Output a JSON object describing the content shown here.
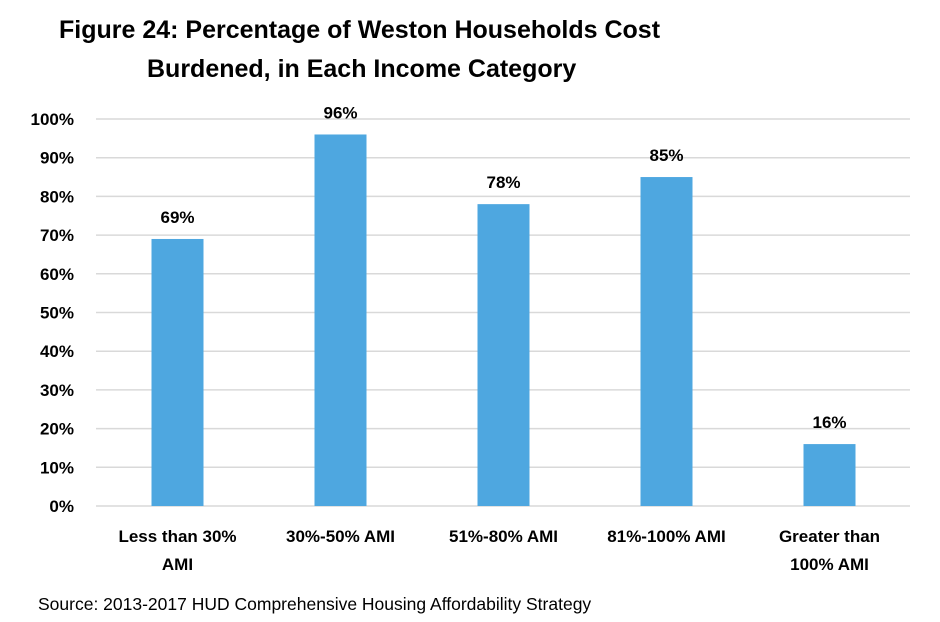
{
  "chart_data": {
    "type": "bar",
    "title_lines": [
      "Figure 24:  Percentage of Weston Households Cost",
      "Burdened, in Each Income Category"
    ],
    "categories": [
      [
        "Less than 30%",
        "AMI"
      ],
      [
        "30%-50% AMI"
      ],
      [
        "51%-80% AMI"
      ],
      [
        "81%-100% AMI"
      ],
      [
        "Greater than",
        "100% AMI"
      ]
    ],
    "values": [
      69,
      96,
      78,
      85,
      16
    ],
    "data_labels": [
      "69%",
      "96%",
      "78%",
      "85%",
      "16%"
    ],
    "ylim": [
      0,
      100
    ],
    "yticks": [
      0,
      10,
      20,
      30,
      40,
      50,
      60,
      70,
      80,
      90,
      100
    ],
    "ytick_labels": [
      "0%",
      "10%",
      "20%",
      "30%",
      "40%",
      "50%",
      "60%",
      "70%",
      "80%",
      "90%",
      "100%"
    ],
    "grid": true,
    "legend": "none",
    "bar_color": "#4EA7E0",
    "grid_color": "#D9D9D9"
  },
  "source": "Source: 2013-2017 HUD Comprehensive Housing Affordability Strategy"
}
